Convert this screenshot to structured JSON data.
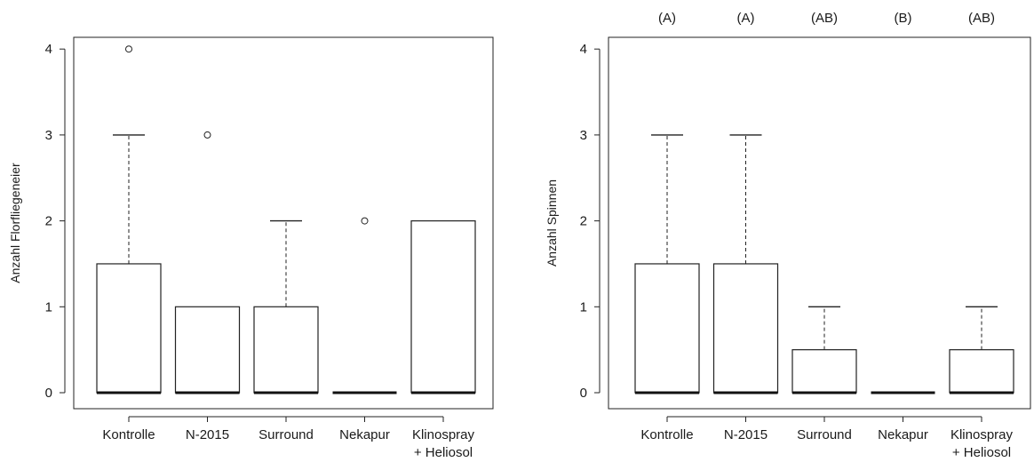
{
  "chart_data": [
    {
      "type": "box",
      "ylabel": "Anzahl Florfliegeneier",
      "ylim": [
        0,
        4
      ],
      "yticks": [
        "0",
        "1",
        "2",
        "3",
        "4"
      ],
      "categories": [
        "Kontrolle",
        "N-2015",
        "Surround",
        "Nekapur",
        "Klinospray\n+ Heliosol"
      ],
      "boxes": [
        {
          "whisker_low": 0,
          "q1": 0,
          "median": 0,
          "q3": 1.5,
          "whisker_high": 3,
          "outliers": [
            4
          ]
        },
        {
          "whisker_low": 0,
          "q1": 0,
          "median": 0,
          "q3": 1,
          "whisker_high": 1,
          "outliers": [
            3
          ]
        },
        {
          "whisker_low": 0,
          "q1": 0,
          "median": 0,
          "q3": 1,
          "whisker_high": 2,
          "outliers": []
        },
        {
          "whisker_low": 0,
          "q1": 0,
          "median": 0,
          "q3": 0,
          "whisker_high": 0,
          "outliers": [
            2
          ]
        },
        {
          "whisker_low": 0,
          "q1": 0,
          "median": 0,
          "q3": 2,
          "whisker_high": 2,
          "outliers": []
        }
      ],
      "significance_labels": []
    },
    {
      "type": "box",
      "ylabel": "Anzahl Spinnen",
      "ylim": [
        0,
        4
      ],
      "yticks": [
        "0",
        "1",
        "2",
        "3",
        "4"
      ],
      "categories": [
        "Kontrolle",
        "N-2015",
        "Surround",
        "Nekapur",
        "Klinospray\n+ Heliosol"
      ],
      "boxes": [
        {
          "whisker_low": 0,
          "q1": 0,
          "median": 0,
          "q3": 1.5,
          "whisker_high": 3,
          "outliers": []
        },
        {
          "whisker_low": 0,
          "q1": 0,
          "median": 0,
          "q3": 1.5,
          "whisker_high": 3,
          "outliers": []
        },
        {
          "whisker_low": 0,
          "q1": 0,
          "median": 0,
          "q3": 0.5,
          "whisker_high": 1,
          "outliers": []
        },
        {
          "whisker_low": 0,
          "q1": 0,
          "median": 0,
          "q3": 0,
          "whisker_high": 0,
          "outliers": []
        },
        {
          "whisker_low": 0,
          "q1": 0,
          "median": 0,
          "q3": 0.5,
          "whisker_high": 1,
          "outliers": []
        }
      ],
      "significance_labels": [
        "(A)",
        "(A)",
        "(AB)",
        "(B)",
        "(AB)"
      ]
    }
  ]
}
